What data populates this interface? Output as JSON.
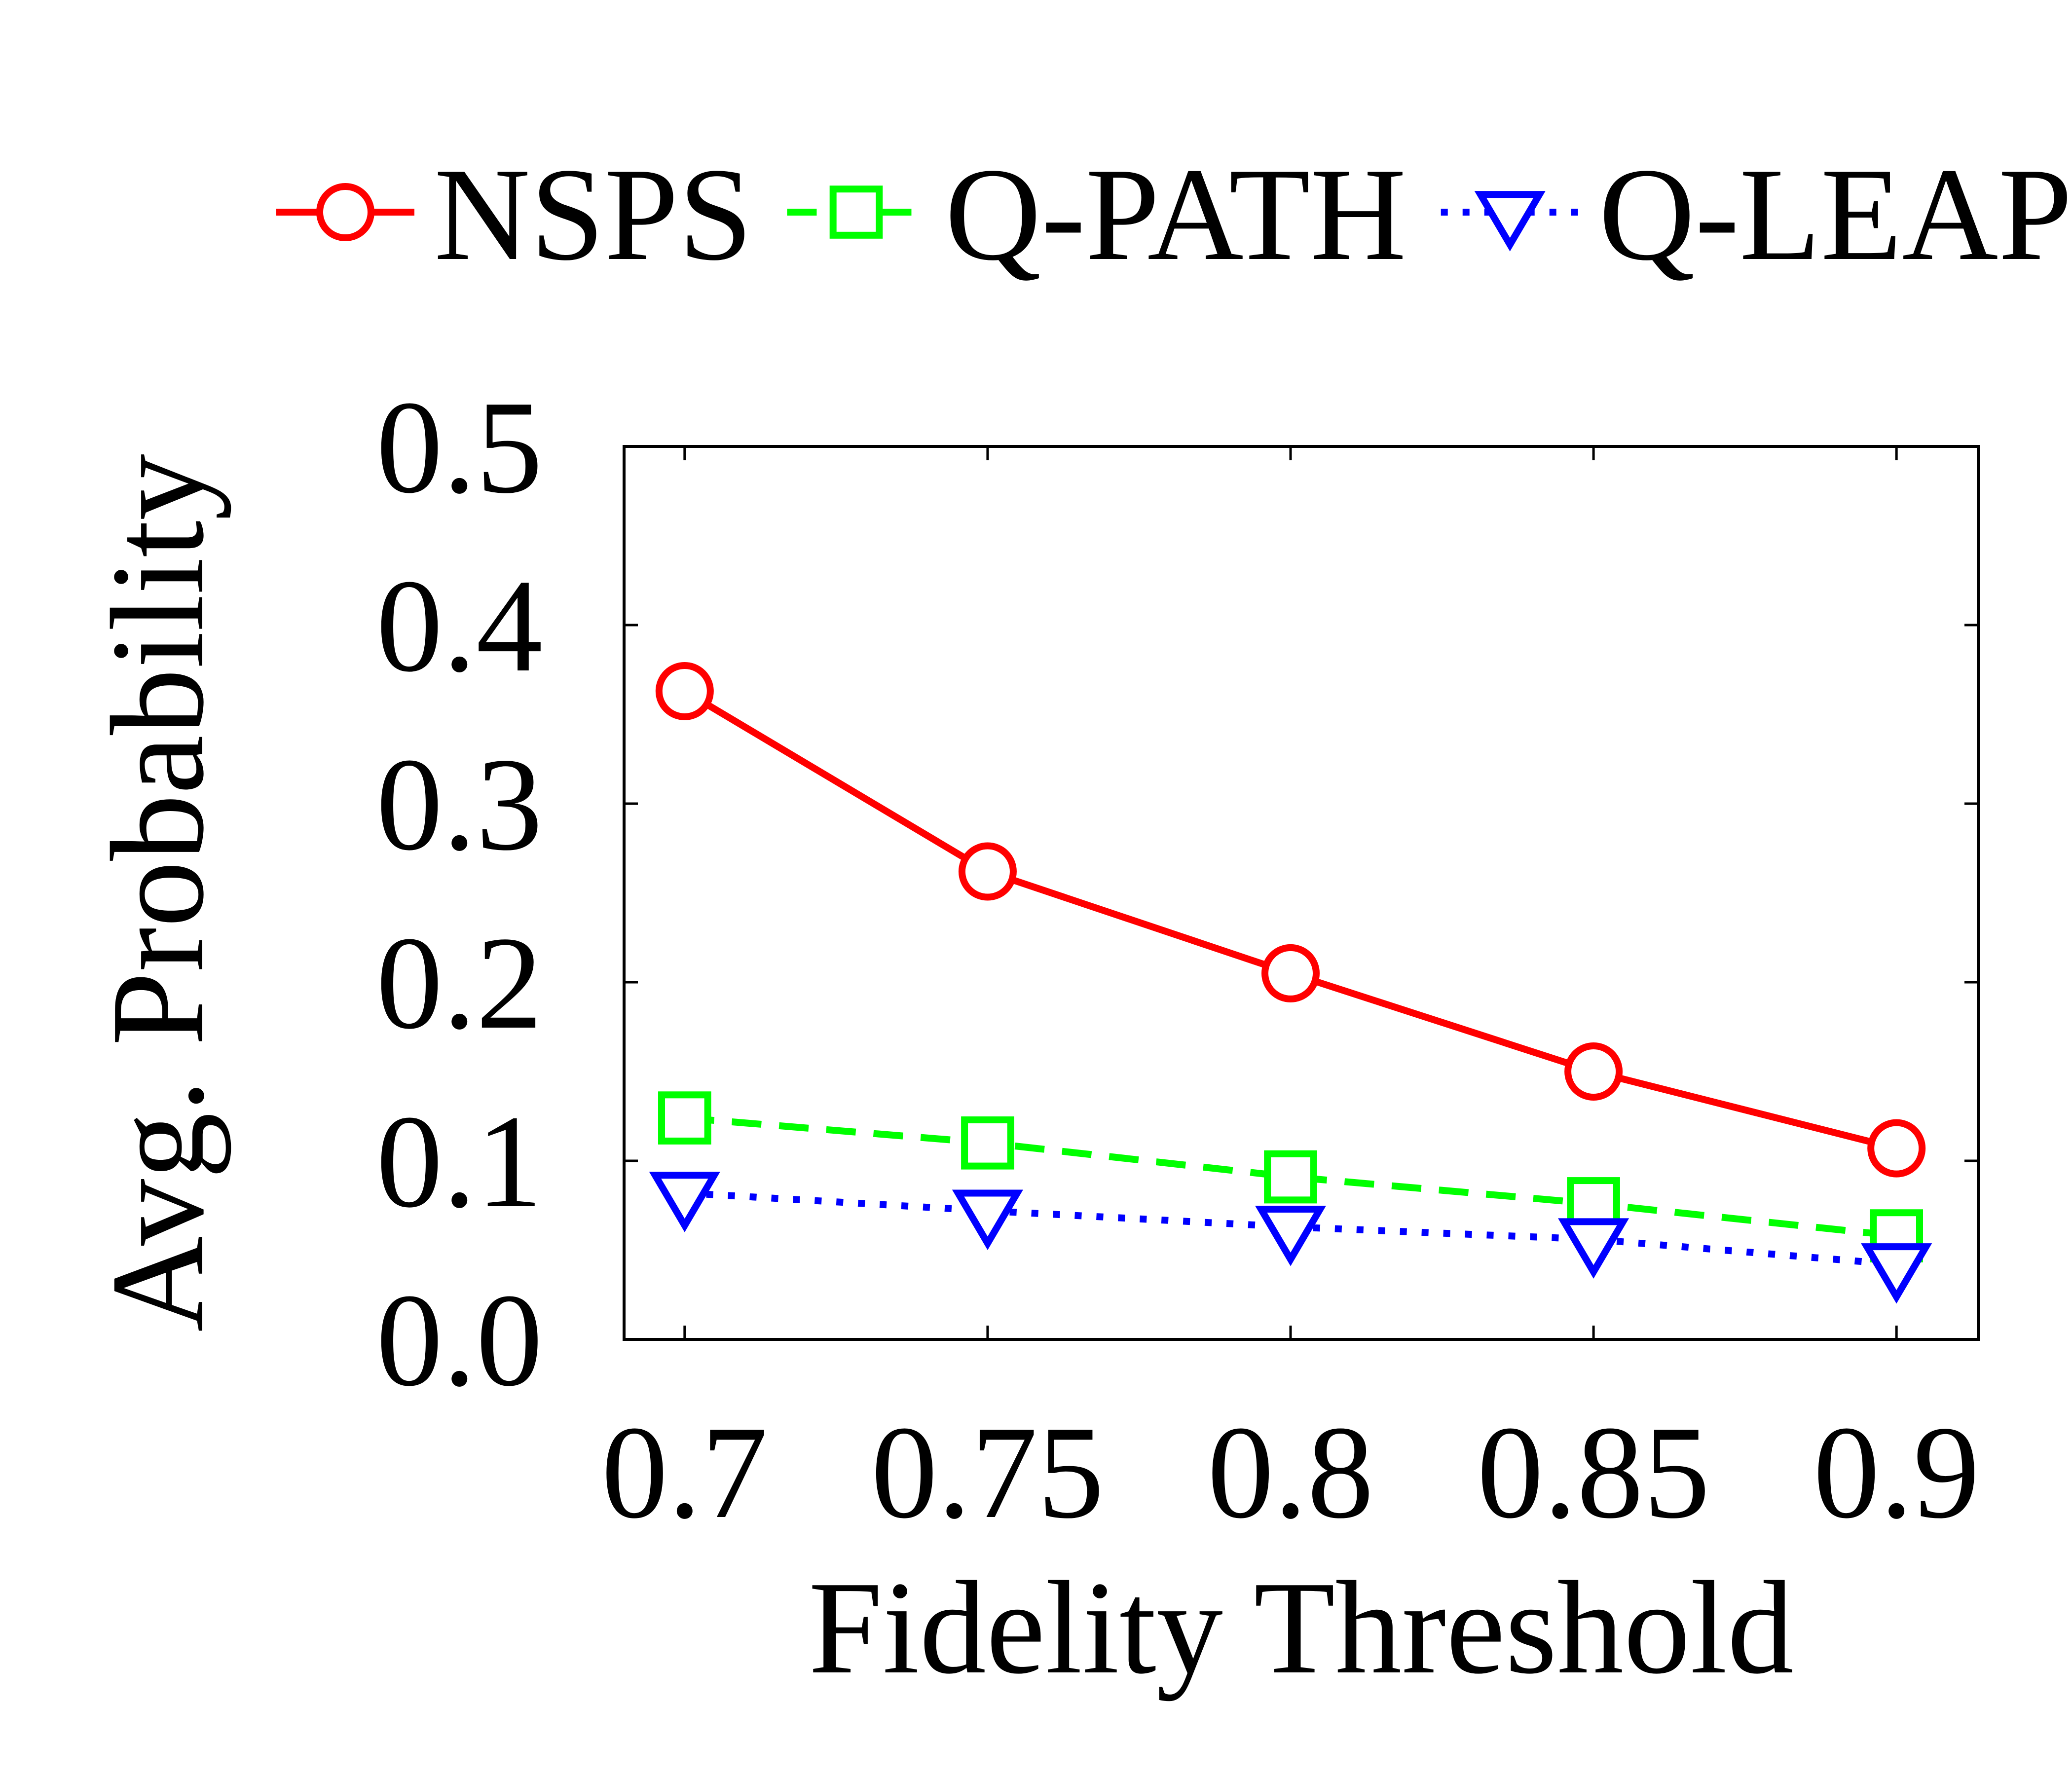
{
  "chart_data": {
    "type": "line",
    "title": "",
    "xlabel": "Fidelity Threshold",
    "ylabel": "Avg. Probability",
    "x": [
      0.7,
      0.75,
      0.8,
      0.85,
      0.9
    ],
    "x_tick_labels": [
      "0.7",
      "0.75",
      "0.8",
      "0.85",
      "0.9"
    ],
    "y_tick_labels": [
      "0.0",
      "0.1",
      "0.2",
      "0.3",
      "0.4",
      "0.5"
    ],
    "y_ticks": [
      0.0,
      0.1,
      0.2,
      0.3,
      0.4,
      0.5
    ],
    "xlim": [
      0.69,
      0.9135
    ],
    "ylim": [
      0.0,
      0.5
    ],
    "grid": false,
    "legend_position": "top",
    "series": [
      {
        "name": "NSPS",
        "values": [
          0.363,
          0.262,
          0.205,
          0.15,
          0.107
        ],
        "color": "#ff0000",
        "marker": "circle",
        "line_style": "solid"
      },
      {
        "name": "Q-PATH",
        "values": [
          0.124,
          0.11,
          0.091,
          0.076,
          0.058
        ],
        "color": "#00ff00",
        "marker": "square",
        "line_style": "dashed"
      },
      {
        "name": "Q-LEAP",
        "values": [
          0.082,
          0.072,
          0.063,
          0.056,
          0.042
        ],
        "color": "#0000ff",
        "marker": "triangle-down",
        "line_style": "dotted"
      }
    ]
  }
}
